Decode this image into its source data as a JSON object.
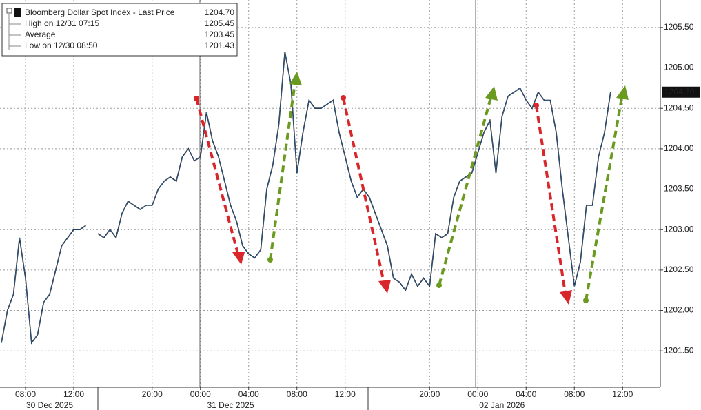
{
  "chart_data": {
    "type": "line",
    "categories": [
      null,
      null,
      null,
      null,
      "08:00",
      null,
      null,
      null,
      null,
      null,
      null,
      null,
      "12:00",
      null,
      null,
      null,
      null,
      null,
      null,
      null,
      null,
      null,
      null,
      null,
      null,
      "20:00",
      null,
      null,
      null,
      null,
      null,
      null,
      null,
      "00:00",
      null,
      null,
      null,
      null,
      null,
      null,
      null,
      "04:00",
      null,
      null,
      null,
      null,
      null,
      null,
      null,
      "08:00",
      null,
      null,
      null,
      null,
      null,
      null,
      null,
      "12:00",
      null,
      null,
      null,
      null,
      null,
      null,
      null,
      null,
      null,
      null,
      null,
      null,
      null,
      "20:00",
      null,
      null,
      null,
      null,
      null,
      null,
      null,
      "00:00",
      null,
      null,
      null,
      null,
      null,
      null,
      null,
      "04:00",
      null,
      null,
      null,
      null,
      null,
      null,
      null,
      "08:00",
      null,
      null,
      null,
      null,
      null,
      null,
      null,
      "12:00",
      null,
      null
    ],
    "date_categories": [
      null,
      null,
      null,
      null,
      null,
      null,
      null,
      null,
      "30 Dec 2025",
      null,
      null,
      null,
      null,
      null,
      null,
      null,
      null,
      null,
      null,
      null,
      null,
      null,
      null,
      null,
      null,
      null,
      null,
      null,
      null,
      null,
      null,
      null,
      null,
      null,
      null,
      null,
      null,
      null,
      "31 Dec 2025",
      null,
      null,
      null,
      null,
      null,
      null,
      null,
      null,
      null,
      null,
      null,
      null,
      null,
      null,
      null,
      null,
      null,
      null,
      null,
      null,
      null,
      null,
      null,
      null,
      null,
      null,
      null,
      null,
      null,
      null,
      null,
      null,
      null,
      null,
      null,
      null,
      null,
      null,
      null,
      null,
      null,
      null,
      null,
      null,
      "02 Jan 2026",
      null,
      null,
      null,
      null,
      null,
      null,
      null,
      null,
      null,
      null,
      null,
      null,
      null,
      null,
      null,
      null,
      null,
      null,
      null,
      null,
      null,
      null
    ],
    "series": [
      {
        "name": "Bloomberg Dollar Spot Index - Last Price",
        "color": "#111111",
        "values": [
          1201.6,
          1202.0,
          1202.2,
          1202.9,
          1202.4,
          1201.6,
          1201.7,
          1202.1,
          1202.2,
          1202.5,
          1202.8,
          1202.9,
          1203.0,
          1203.0,
          1203.05,
          null,
          1202.95,
          1202.9,
          1203.0,
          1202.9,
          1203.2,
          1203.35,
          1203.3,
          1203.25,
          1203.3,
          1203.3,
          1203.5,
          1203.6,
          1203.65,
          1203.6,
          1203.9,
          1204.0,
          1203.85,
          1203.9,
          1204.45,
          1204.1,
          1203.9,
          1203.6,
          1203.3,
          1203.1,
          1202.8,
          1202.7,
          1202.65,
          1202.75,
          1203.5,
          1203.8,
          1204.3,
          1205.2,
          1204.8,
          1203.7,
          1204.2,
          1204.6,
          1204.5,
          1204.5,
          1204.55,
          1204.6,
          1204.2,
          1203.9,
          1203.6,
          1203.4,
          1203.5,
          1203.4,
          1203.2,
          1203.0,
          1202.8,
          1202.4,
          1202.35,
          1202.25,
          1202.45,
          1202.3,
          1202.4,
          1202.3,
          1202.95,
          1202.9,
          1202.95,
          1203.4,
          1203.6,
          1203.65,
          1203.7,
          1203.95,
          1204.2,
          1204.35,
          1203.7,
          1204.4,
          1204.65,
          1204.7,
          1204.75,
          1204.6,
          1204.5,
          1204.7,
          1204.6,
          1204.6,
          1204.2,
          1203.5,
          1202.9,
          1202.3,
          1202.6,
          1203.3,
          1203.3,
          1203.9,
          1204.2,
          1204.7,
          null,
          null,
          null,
          null
        ]
      }
    ],
    "last_price_label": "1204.70",
    "legend_stats": [
      {
        "label": "High on 12/31 07:15",
        "value": "1205.45"
      },
      {
        "label": "Average",
        "value": "1203.45"
      },
      {
        "label": "Low on 12/30 08:50",
        "value": "1201.43"
      }
    ],
    "last_value_label": "1204.70",
    "ylim": [
      1201.05,
      1205.84
    ],
    "yticks": [
      {
        "value": 1201.5,
        "label": "1201.50"
      },
      {
        "value": 1202,
        "label": "1202.00"
      },
      {
        "value": 1202.5,
        "label": "1202.50"
      },
      {
        "value": 1203,
        "label": "1203.00"
      },
      {
        "value": 1203.5,
        "label": "1203.50"
      },
      {
        "value": 1204,
        "label": "1204.00"
      },
      {
        "value": 1204.5,
        "label": "1204.50"
      },
      {
        "value": 1205,
        "label": "1205.00"
      },
      {
        "value": 1205.5,
        "label": "1205.50"
      }
    ],
    "grid": true
  }
}
